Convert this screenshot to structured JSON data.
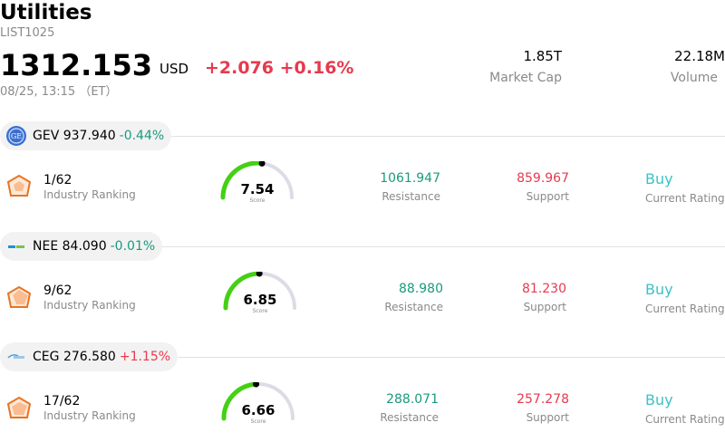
{
  "header": {
    "title": "Utilities",
    "code": "LIST1025",
    "price": "1312.153",
    "currency": "USD",
    "change": "+2.076 +0.16%",
    "time": "08/25, 13:15 （ET）",
    "market_cap_value": "1.85T",
    "market_cap_label": "Market Cap",
    "volume_value": "22.18M",
    "volume_label": "Volume"
  },
  "stocks": [
    {
      "ticker": "GEV",
      "price": "937.940",
      "change": "-0.44%",
      "change_color": "#1a9a7e",
      "logo_icon": "ge-globe-icon",
      "rank": "1/62",
      "rank_label": "Industry Ranking",
      "score": "7.54",
      "score_value": 7.54,
      "score_label": "Score",
      "resistance": "1061.947",
      "resistance_label": "Resistance",
      "support": "859.967",
      "support_label": "Support",
      "rating": "Buy",
      "rating_label": "Current Rating"
    },
    {
      "ticker": "NEE",
      "price": "84.090",
      "change": "-0.01%",
      "change_color": "#1a9a7e",
      "logo_icon": "nextera-logo-icon",
      "rank": "9/62",
      "rank_label": "Industry Ranking",
      "score": "6.85",
      "score_value": 6.85,
      "score_label": "Score",
      "resistance": "88.980",
      "resistance_label": "Resistance",
      "support": "81.230",
      "support_label": "Support",
      "rating": "Buy",
      "rating_label": "Current Rating"
    },
    {
      "ticker": "CEG",
      "price": "276.580",
      "change": "+1.15%",
      "change_color": "#e63a4e",
      "logo_icon": "constellation-logo-icon",
      "rank": "17/62",
      "rank_label": "Industry Ranking",
      "score": "6.66",
      "score_value": 6.66,
      "score_label": "Score",
      "resistance": "288.071",
      "resistance_label": "Resistance",
      "support": "257.278",
      "support_label": "Support",
      "rating": "Buy",
      "rating_label": "Current Rating"
    }
  ],
  "colors": {
    "up": "#e63a4e",
    "down": "#1a9a7e",
    "gauge_fill": "#44d014",
    "gauge_track": "#dcdce6",
    "rating": "#3dc1c9"
  }
}
